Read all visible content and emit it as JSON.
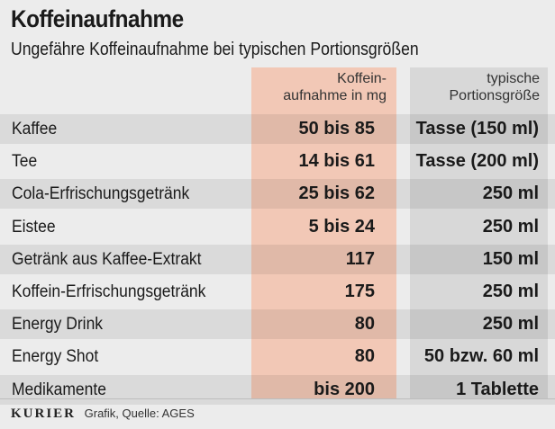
{
  "header": {
    "title": "Koffeinaufnahme",
    "subtitle": "Ungefähre Koffeinaufnahme bei typischen Portionsgrößen"
  },
  "columns": {
    "caffeine_line1": "Koffein-",
    "caffeine_line2": "aufnahme in mg",
    "portion_line1": "typische",
    "portion_line2": "Portionsgröße"
  },
  "colors": {
    "caffeine_band": "#f2c8b6",
    "portion_band": "#d8d8d8",
    "background": "#ececec"
  },
  "chart_data": {
    "type": "table",
    "title": "Koffeinaufnahme",
    "subtitle": "Ungefähre Koffeinaufnahme bei typischen Portionsgrößen",
    "columns": [
      "Koffeinaufnahme in mg",
      "typische Portionsgröße"
    ],
    "rows": [
      {
        "label": "Kaffee",
        "caffeine": "50 bis 85",
        "portion": "Tasse (150 ml)"
      },
      {
        "label": "Tee",
        "caffeine": "14 bis 61",
        "portion": "Tasse (200 ml)"
      },
      {
        "label": "Cola-Erfrischungsgetränk",
        "caffeine": "25 bis 62",
        "portion": "250 ml"
      },
      {
        "label": "Eistee",
        "caffeine": "5 bis 24",
        "portion": "250 ml"
      },
      {
        "label": "Getränk aus Kaffee-Extrakt",
        "caffeine": "117",
        "portion": "150 ml"
      },
      {
        "label": "Koffein-Erfrischungsgetränk",
        "caffeine": "175",
        "portion": "250 ml"
      },
      {
        "label": "Energy Drink",
        "caffeine": "80",
        "portion": "250 ml"
      },
      {
        "label": "Energy Shot",
        "caffeine": "80",
        "portion": "50 bzw. 60 ml"
      },
      {
        "label": "Medikamente",
        "caffeine": "bis 200",
        "portion": "1 Tablette"
      }
    ]
  },
  "footer": {
    "brand": "KURIER",
    "source": "Grafik, Quelle: AGES"
  }
}
